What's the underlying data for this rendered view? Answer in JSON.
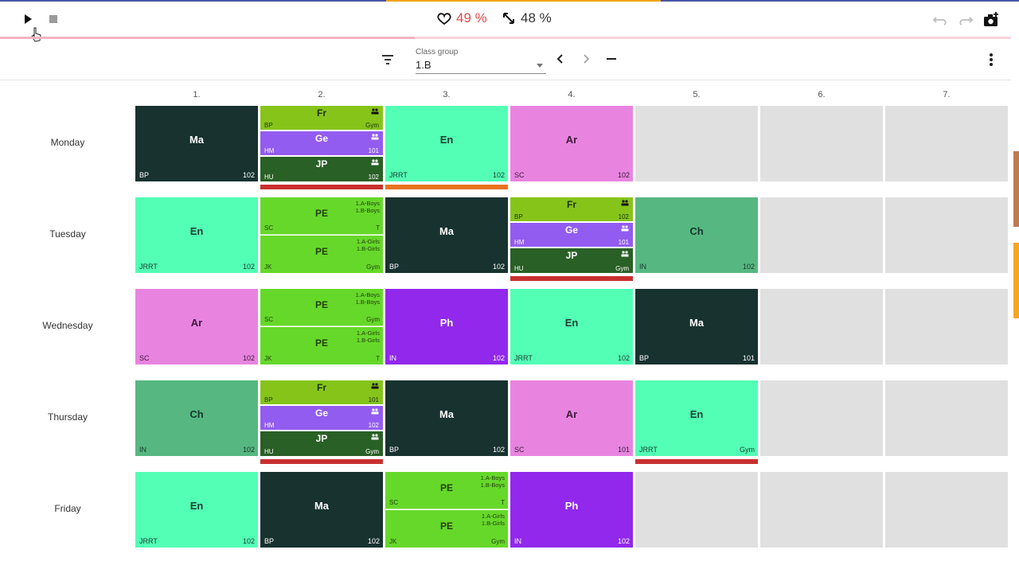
{
  "toolbar_top": {
    "love_pct": "49 %",
    "resize_pct": "48 %",
    "progress_fraction": 0.41
  },
  "class_selector": {
    "label": "Class group",
    "value": "1.B"
  },
  "periods": [
    "1.",
    "2.",
    "3.",
    "4.",
    "5.",
    "6.",
    "7."
  ],
  "days": [
    "Monday",
    "Tuesday",
    "Wednesday",
    "Thursday",
    "Friday"
  ],
  "colors": {
    "Ma": "#17322f",
    "En": "#52ffb5",
    "Ar": "#e884e0",
    "Ph": "#9128ec",
    "Ch": "#56b880",
    "PE": "#66d82a",
    "Fr": "#86c41a",
    "Ge": "#935cf0",
    "JP": "#296025",
    "conflict_red": "#c8302f",
    "warning_orange": "#e8731f"
  },
  "timetable": {
    "mon": {
      "p1": {
        "subject": "Ma",
        "teacher": "BP",
        "room": "102"
      },
      "p2": {
        "fr": {
          "subject": "Fr",
          "teacher": "BP",
          "room": "Gym"
        },
        "ge": {
          "subject": "Ge",
          "teacher": "HM",
          "room": "101"
        },
        "jp": {
          "subject": "JP",
          "teacher": "HU",
          "room": "102"
        }
      },
      "p3": {
        "subject": "En",
        "teacher": "JRRT",
        "room": "102"
      },
      "p4": {
        "subject": "Ar",
        "teacher": "SC",
        "room": "102"
      }
    },
    "tue": {
      "p1": {
        "subject": "En",
        "teacher": "JRRT",
        "room": "102"
      },
      "p2": {
        "top": {
          "subject": "PE",
          "groups": [
            "1.A-Boys",
            "1.B-Boys"
          ],
          "teacher": "SC",
          "room": "T"
        },
        "bot": {
          "subject": "PE",
          "groups": [
            "1.A-Girls",
            "1.B-Girls"
          ],
          "teacher": "JK",
          "room": "Gym"
        }
      },
      "p3": {
        "subject": "Ma",
        "teacher": "BP",
        "room": "102"
      },
      "p4": {
        "fr": {
          "subject": "Fr",
          "teacher": "BP",
          "room": "102"
        },
        "ge": {
          "subject": "Ge",
          "teacher": "HM",
          "room": "101"
        },
        "jp": {
          "subject": "JP",
          "teacher": "HU",
          "room": "Gym"
        }
      },
      "p5": {
        "subject": "Ch",
        "teacher": "IN",
        "room": "102"
      }
    },
    "wed": {
      "p1": {
        "subject": "Ar",
        "teacher": "SC",
        "room": "102"
      },
      "p2": {
        "top": {
          "subject": "PE",
          "groups": [
            "1.A-Boys",
            "1.B-Boys"
          ],
          "teacher": "SC",
          "room": "Gym"
        },
        "bot": {
          "subject": "PE",
          "groups": [
            "1.A-Girls",
            "1.B-Girls"
          ],
          "teacher": "JK",
          "room": "T"
        }
      },
      "p3": {
        "subject": "Ph",
        "teacher": "IN",
        "room": "102"
      },
      "p4": {
        "subject": "En",
        "teacher": "JRRT",
        "room": "102"
      },
      "p5": {
        "subject": "Ma",
        "teacher": "BP",
        "room": "101"
      }
    },
    "thu": {
      "p1": {
        "subject": "Ch",
        "teacher": "IN",
        "room": "102"
      },
      "p2": {
        "fr": {
          "subject": "Fr",
          "teacher": "BP",
          "room": "101"
        },
        "ge": {
          "subject": "Ge",
          "teacher": "HM",
          "room": "102"
        },
        "jp": {
          "subject": "JP",
          "teacher": "HU",
          "room": "Gym"
        }
      },
      "p3": {
        "subject": "Ma",
        "teacher": "BP",
        "room": "102"
      },
      "p4": {
        "subject": "Ar",
        "teacher": "SC",
        "room": "101"
      },
      "p5": {
        "subject": "En",
        "teacher": "JRRT",
        "room": "Gym"
      }
    },
    "fri": {
      "p1": {
        "subject": "En",
        "teacher": "JRRT",
        "room": "102"
      },
      "p2": {
        "subject": "Ma",
        "teacher": "BP",
        "room": "102"
      },
      "p3": {
        "top": {
          "subject": "PE",
          "groups": [
            "1.A-Boys",
            "1.B-Boys"
          ],
          "teacher": "SC",
          "room": "T"
        },
        "bot": {
          "subject": "PE",
          "groups": [
            "1.A-Girls",
            "1.B-Girls"
          ],
          "teacher": "JK",
          "room": "Gym"
        }
      },
      "p4": {
        "subject": "Ph",
        "teacher": "IN",
        "room": "102"
      }
    }
  }
}
